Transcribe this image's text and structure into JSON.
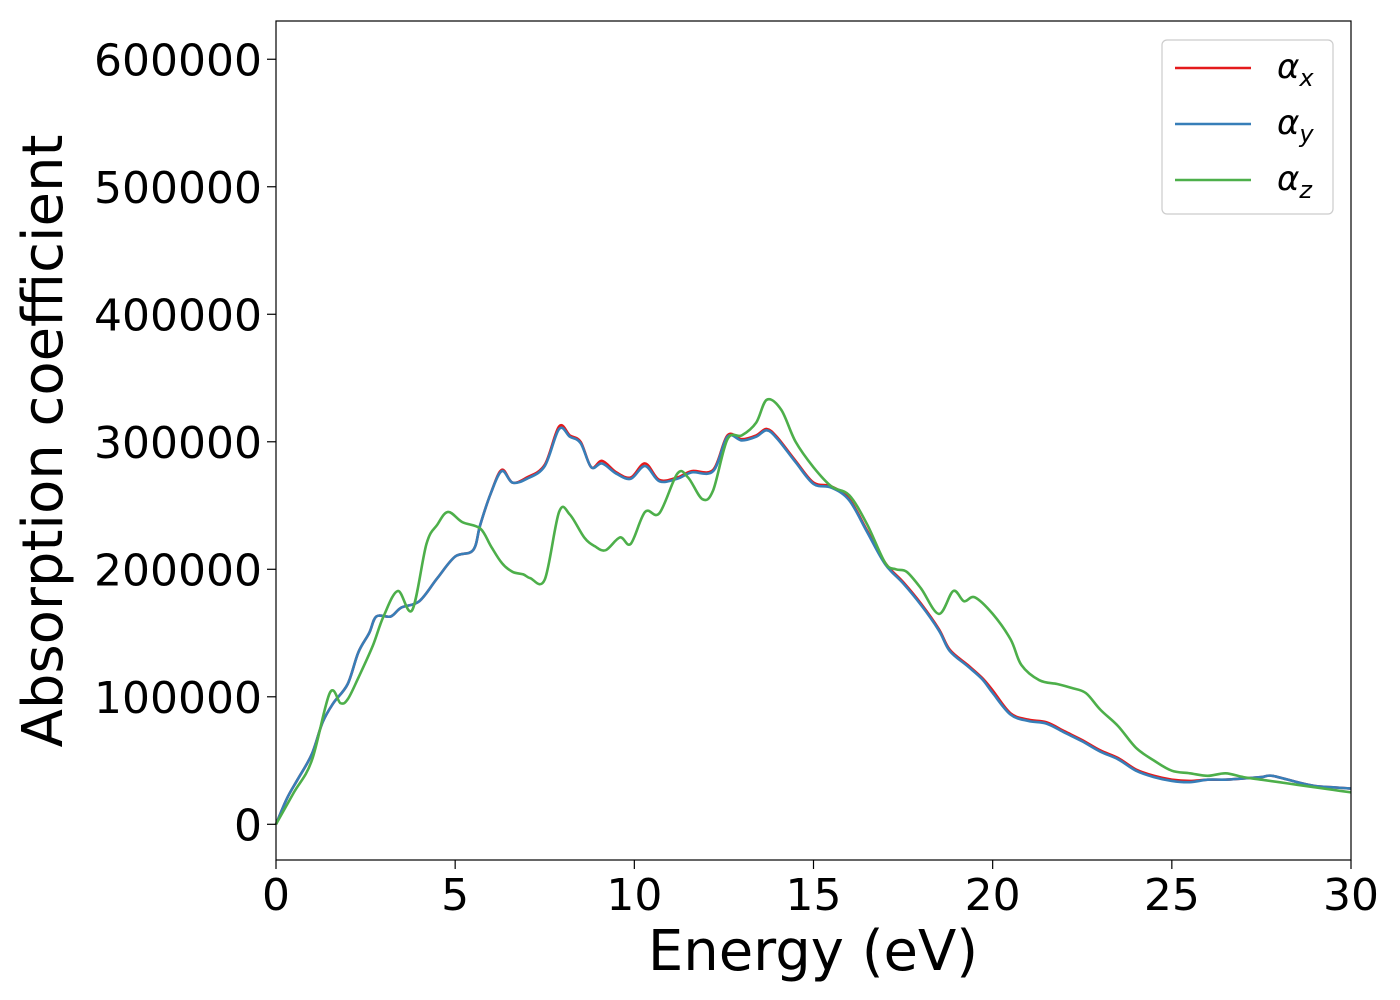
{
  "chart_data": {
    "type": "line",
    "title": "",
    "xlabel": "Energy (eV)",
    "ylabel": "Absorption coefficient",
    "xlim": [
      0,
      30
    ],
    "ylim": [
      -28000,
      630000
    ],
    "xticks": [
      0,
      5,
      10,
      15,
      20,
      25,
      30
    ],
    "xtick_labels": [
      "0",
      "5",
      "10",
      "15",
      "20",
      "25",
      "30"
    ],
    "yticks": [
      0,
      100000,
      200000,
      300000,
      400000,
      500000,
      600000
    ],
    "ytick_labels": [
      "0",
      "100000",
      "200000",
      "300000",
      "400000",
      "500000",
      "600000"
    ],
    "grid": false,
    "legend_position": "top-right",
    "series": [
      {
        "name": "α",
        "subscript": "x",
        "color": "#e41a1c",
        "points": [
          [
            0,
            0
          ],
          [
            0.3,
            20000
          ],
          [
            0.6,
            35000
          ],
          [
            1,
            55000
          ],
          [
            1.3,
            80000
          ],
          [
            1.6,
            95000
          ],
          [
            2,
            110000
          ],
          [
            2.3,
            135000
          ],
          [
            2.6,
            150000
          ],
          [
            2.8,
            163000
          ],
          [
            3.2,
            163000
          ],
          [
            3.5,
            170000
          ],
          [
            4,
            175000
          ],
          [
            4.5,
            193000
          ],
          [
            5,
            210000
          ],
          [
            5.5,
            215000
          ],
          [
            5.7,
            235000
          ],
          [
            6,
            260000
          ],
          [
            6.3,
            278000
          ],
          [
            6.6,
            268000
          ],
          [
            7,
            272000
          ],
          [
            7.5,
            282000
          ],
          [
            7.9,
            312000
          ],
          [
            8.2,
            305000
          ],
          [
            8.5,
            300000
          ],
          [
            8.8,
            280000
          ],
          [
            9.1,
            285000
          ],
          [
            9.5,
            276000
          ],
          [
            9.9,
            272000
          ],
          [
            10.3,
            283000
          ],
          [
            10.7,
            270000
          ],
          [
            11.2,
            272000
          ],
          [
            11.6,
            277000
          ],
          [
            12.2,
            278000
          ],
          [
            12.6,
            305000
          ],
          [
            13,
            302000
          ],
          [
            13.4,
            305000
          ],
          [
            13.7,
            310000
          ],
          [
            14,
            303000
          ],
          [
            14.5,
            285000
          ],
          [
            15,
            268000
          ],
          [
            15.5,
            265000
          ],
          [
            16,
            255000
          ],
          [
            16.5,
            230000
          ],
          [
            17,
            205000
          ],
          [
            17.5,
            190000
          ],
          [
            18,
            173000
          ],
          [
            18.5,
            153000
          ],
          [
            18.8,
            137000
          ],
          [
            19.3,
            125000
          ],
          [
            19.7,
            115000
          ],
          [
            20,
            105000
          ],
          [
            20.5,
            87000
          ],
          [
            21,
            82000
          ],
          [
            21.5,
            80000
          ],
          [
            22,
            73000
          ],
          [
            22.5,
            66000
          ],
          [
            23,
            58000
          ],
          [
            23.5,
            52000
          ],
          [
            24,
            43000
          ],
          [
            24.5,
            38000
          ],
          [
            25,
            35000
          ],
          [
            25.5,
            34000
          ],
          [
            26,
            35000
          ],
          [
            26.5,
            35000
          ],
          [
            27,
            36000
          ],
          [
            27.5,
            37000
          ],
          [
            27.8,
            38000
          ],
          [
            28.5,
            33000
          ],
          [
            29,
            30000
          ],
          [
            29.5,
            29000
          ],
          [
            30,
            28000
          ]
        ]
      },
      {
        "name": "α",
        "subscript": "y",
        "color": "#377eb8",
        "points": [
          [
            0,
            0
          ],
          [
            0.3,
            20000
          ],
          [
            0.6,
            35000
          ],
          [
            1,
            55000
          ],
          [
            1.3,
            80000
          ],
          [
            1.6,
            95000
          ],
          [
            2,
            110000
          ],
          [
            2.3,
            135000
          ],
          [
            2.6,
            150000
          ],
          [
            2.8,
            163000
          ],
          [
            3.2,
            163000
          ],
          [
            3.5,
            170000
          ],
          [
            4,
            175000
          ],
          [
            4.5,
            193000
          ],
          [
            5,
            210000
          ],
          [
            5.5,
            215000
          ],
          [
            5.7,
            235000
          ],
          [
            6,
            260000
          ],
          [
            6.3,
            277000
          ],
          [
            6.6,
            268000
          ],
          [
            7,
            271000
          ],
          [
            7.5,
            281000
          ],
          [
            7.9,
            310000
          ],
          [
            8.2,
            304000
          ],
          [
            8.5,
            299000
          ],
          [
            8.8,
            280000
          ],
          [
            9.1,
            283000
          ],
          [
            9.5,
            275000
          ],
          [
            9.9,
            271000
          ],
          [
            10.3,
            281000
          ],
          [
            10.7,
            269000
          ],
          [
            11.2,
            271000
          ],
          [
            11.6,
            276000
          ],
          [
            12.2,
            277000
          ],
          [
            12.6,
            304000
          ],
          [
            13,
            301000
          ],
          [
            13.4,
            304000
          ],
          [
            13.7,
            309000
          ],
          [
            14,
            302000
          ],
          [
            14.5,
            284000
          ],
          [
            15,
            267000
          ],
          [
            15.5,
            264000
          ],
          [
            16,
            254000
          ],
          [
            16.5,
            229000
          ],
          [
            17,
            204000
          ],
          [
            17.5,
            189000
          ],
          [
            18,
            172000
          ],
          [
            18.5,
            152000
          ],
          [
            18.8,
            136000
          ],
          [
            19.3,
            124000
          ],
          [
            19.7,
            114000
          ],
          [
            20,
            103000
          ],
          [
            20.5,
            86000
          ],
          [
            21,
            81000
          ],
          [
            21.5,
            79000
          ],
          [
            22,
            72000
          ],
          [
            22.5,
            65000
          ],
          [
            23,
            57000
          ],
          [
            23.5,
            51000
          ],
          [
            24,
            42000
          ],
          [
            24.5,
            37000
          ],
          [
            25,
            34000
          ],
          [
            25.5,
            33000
          ],
          [
            26,
            35000
          ],
          [
            26.5,
            35000
          ],
          [
            27,
            36000
          ],
          [
            27.5,
            37000
          ],
          [
            27.8,
            38000
          ],
          [
            28.5,
            33000
          ],
          [
            29,
            30000
          ],
          [
            29.5,
            29000
          ],
          [
            30,
            28000
          ]
        ]
      },
      {
        "name": "α",
        "subscript": "z",
        "color": "#4daf4a",
        "points": [
          [
            0,
            0
          ],
          [
            0.5,
            25000
          ],
          [
            1,
            50000
          ],
          [
            1.5,
            103000
          ],
          [
            1.8,
            95000
          ],
          [
            2,
            98000
          ],
          [
            2.3,
            115000
          ],
          [
            2.7,
            140000
          ],
          [
            3,
            163000
          ],
          [
            3.4,
            183000
          ],
          [
            3.8,
            168000
          ],
          [
            4.2,
            220000
          ],
          [
            4.5,
            235000
          ],
          [
            4.8,
            245000
          ],
          [
            5.2,
            237000
          ],
          [
            5.7,
            232000
          ],
          [
            6,
            218000
          ],
          [
            6.3,
            205000
          ],
          [
            6.6,
            198000
          ],
          [
            6.9,
            196000
          ],
          [
            7.1,
            193000
          ],
          [
            7.5,
            192000
          ],
          [
            7.9,
            245000
          ],
          [
            8.2,
            243000
          ],
          [
            8.6,
            225000
          ],
          [
            8.9,
            218000
          ],
          [
            9.2,
            215000
          ],
          [
            9.6,
            225000
          ],
          [
            9.9,
            220000
          ],
          [
            10.3,
            245000
          ],
          [
            10.7,
            244000
          ],
          [
            11.2,
            275000
          ],
          [
            11.5,
            272000
          ],
          [
            11.9,
            255000
          ],
          [
            12.2,
            262000
          ],
          [
            12.6,
            302000
          ],
          [
            13,
            305000
          ],
          [
            13.4,
            315000
          ],
          [
            13.7,
            333000
          ],
          [
            14.1,
            325000
          ],
          [
            14.5,
            300000
          ],
          [
            15,
            280000
          ],
          [
            15.5,
            265000
          ],
          [
            16,
            258000
          ],
          [
            16.5,
            235000
          ],
          [
            17,
            205000
          ],
          [
            17.3,
            200000
          ],
          [
            17.6,
            198000
          ],
          [
            18,
            185000
          ],
          [
            18.5,
            165000
          ],
          [
            18.9,
            183000
          ],
          [
            19.2,
            175000
          ],
          [
            19.5,
            178000
          ],
          [
            20,
            165000
          ],
          [
            20.5,
            145000
          ],
          [
            20.8,
            125000
          ],
          [
            21.3,
            113000
          ],
          [
            21.8,
            110000
          ],
          [
            22.2,
            107000
          ],
          [
            22.6,
            103000
          ],
          [
            23,
            90000
          ],
          [
            23.5,
            77000
          ],
          [
            24,
            60000
          ],
          [
            24.5,
            50000
          ],
          [
            25,
            42000
          ],
          [
            25.5,
            40000
          ],
          [
            26,
            38000
          ],
          [
            26.5,
            40000
          ],
          [
            27,
            37000
          ],
          [
            27.5,
            35000
          ],
          [
            28,
            33000
          ],
          [
            28.5,
            31000
          ],
          [
            29,
            29000
          ],
          [
            29.5,
            27000
          ],
          [
            30,
            25000
          ]
        ]
      }
    ]
  }
}
